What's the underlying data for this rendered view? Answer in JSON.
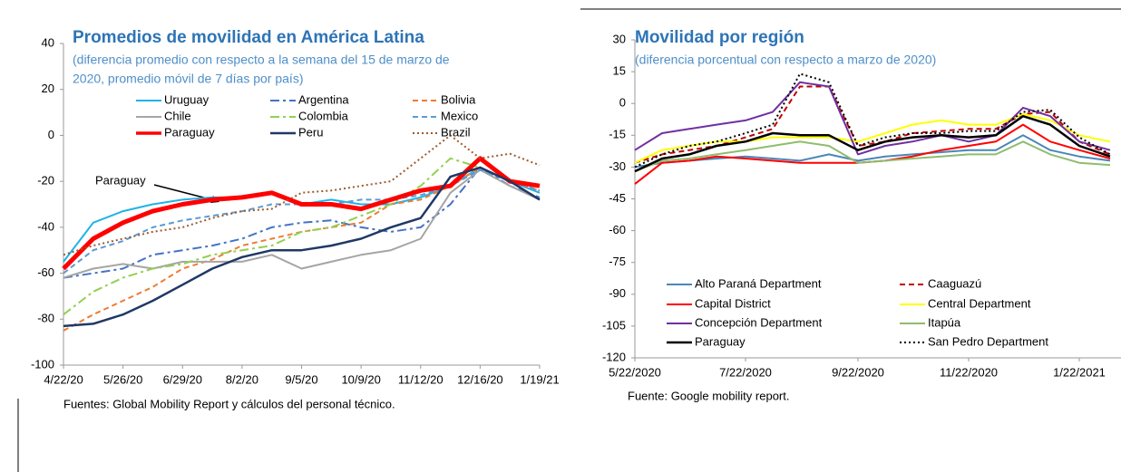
{
  "chart_data": [
    {
      "type": "line",
      "title": "Promedios de movilidad en América Latina",
      "subtitle": [
        "(diferencia promedio con respecto a la semana del 15 de marzo de",
        "2020, promedio móvil de 7 días por país)"
      ],
      "annotation": "Paraguay",
      "source": "Fuentes: Global Mobility Report y cálculos del personal técnico.",
      "x": [
        "4/22/20",
        "5/9/20",
        "5/26/20",
        "6/12/20",
        "6/29/20",
        "7/16/20",
        "8/2/20",
        "8/19/20",
        "9/5/20",
        "9/22/20",
        "10/9/20",
        "10/26/20",
        "11/12/20",
        "11/29/20",
        "12/16/20",
        "1/2/21",
        "1/19/21"
      ],
      "xlim": [
        "4/22/20",
        "1/19/21"
      ],
      "xticks": [
        "4/22/20",
        "5/26/20",
        "6/29/20",
        "8/2/20",
        "9/5/20",
        "10/9/20",
        "11/12/20",
        "12/16/20",
        "1/19/21"
      ],
      "ylim": [
        -100,
        40
      ],
      "yticks": [
        40,
        20,
        0,
        -20,
        -40,
        -60,
        -80,
        -100
      ],
      "grid": false,
      "series": [
        {
          "name": "Uruguay",
          "color": "#1fb3e8",
          "dash": "solid",
          "width": 2,
          "values": [
            -55,
            -38,
            -33,
            -30,
            -28,
            -27,
            -27,
            -25,
            -30,
            -28,
            -30,
            -30,
            -27,
            -22,
            -14,
            -20,
            -25
          ]
        },
        {
          "name": "Argentina",
          "color": "#4472c4",
          "dash": "dashdot",
          "width": 2,
          "values": [
            -62,
            -60,
            -58,
            -52,
            -50,
            -48,
            -45,
            -40,
            -38,
            -37,
            -40,
            -42,
            -40,
            -30,
            -14,
            -22,
            -27
          ]
        },
        {
          "name": "Bolivia",
          "color": "#ed7d31",
          "dash": "dash",
          "width": 2,
          "values": [
            -85,
            -78,
            -72,
            -66,
            -58,
            -54,
            -48,
            -45,
            -42,
            -40,
            -38,
            -30,
            -28,
            -22,
            -14,
            -20,
            -24
          ]
        },
        {
          "name": "Chile",
          "color": "#a5a5a5",
          "dash": "solid",
          "width": 2,
          "values": [
            -62,
            -58,
            -56,
            -58,
            -55,
            -55,
            -55,
            -52,
            -58,
            -55,
            -52,
            -50,
            -45,
            -25,
            -15,
            -22,
            -28
          ]
        },
        {
          "name": "Colombia",
          "color": "#92d050",
          "dash": "dashdot",
          "width": 2,
          "values": [
            -78,
            -68,
            -62,
            -58,
            -56,
            -52,
            -50,
            -48,
            -42,
            -40,
            -35,
            -30,
            -22,
            -10,
            -14,
            -20,
            -28
          ]
        },
        {
          "name": "Mexico",
          "color": "#5b9bd5",
          "dash": "dash",
          "width": 2,
          "values": [
            -60,
            -50,
            -46,
            -40,
            -37,
            -35,
            -33,
            -30,
            -30,
            -30,
            -28,
            -28,
            -26,
            -22,
            -15,
            -20,
            -24
          ]
        },
        {
          "name": "Paraguay",
          "color": "#ff0000",
          "dash": "solid",
          "width": 5,
          "values": [
            -58,
            -45,
            -38,
            -33,
            -30,
            -28,
            -27,
            -25,
            -30,
            -30,
            -32,
            -28,
            -24,
            -22,
            -10,
            -20,
            -22
          ]
        },
        {
          "name": "Peru",
          "color": "#203864",
          "dash": "solid",
          "width": 2.5,
          "values": [
            -83,
            -82,
            -78,
            -72,
            -65,
            -58,
            -53,
            -50,
            -50,
            -48,
            -45,
            -40,
            -36,
            -18,
            -14,
            -20,
            -28
          ]
        },
        {
          "name": "Brazil",
          "color": "#9e5a2b",
          "dash": "dot",
          "width": 2,
          "values": [
            -52,
            -48,
            -45,
            -42,
            -40,
            -36,
            -33,
            -32,
            -25,
            -24,
            -22,
            -20,
            -10,
            0,
            -10,
            -8,
            -13
          ]
        }
      ]
    },
    {
      "type": "line",
      "title": "Movilidad por región",
      "subtitle": [
        "(diferencia porcentual con respecto a marzo de 2020)"
      ],
      "source": "Fuente: Google mobility report.",
      "x": [
        "5/22/2020",
        "6/6/2020",
        "6/21/2020",
        "7/6/2020",
        "7/22/2020",
        "8/6/2020",
        "8/21/2020",
        "9/6/2020",
        "9/22/2020",
        "10/7/2020",
        "10/22/2020",
        "11/7/2020",
        "11/22/2020",
        "12/7/2020",
        "12/22/2020",
        "1/6/2021",
        "1/22/2021",
        "2/8/2021"
      ],
      "xlim": [
        "5/22/2020",
        "2/14/2021"
      ],
      "xticks": [
        "5/22/2020",
        "7/22/2020",
        "9/22/2020",
        "11/22/2020",
        "1/22/2021"
      ],
      "ylim": [
        -120,
        30
      ],
      "yticks": [
        30,
        15,
        0,
        -15,
        -30,
        -45,
        -60,
        -75,
        -90,
        -105,
        -120
      ],
      "grid": false,
      "series": [
        {
          "name": "Alto Paraná Department",
          "color": "#4a86b8",
          "dash": "solid",
          "width": 2,
          "values": [
            -30,
            -28,
            -27,
            -26,
            -25,
            -26,
            -27,
            -24,
            -27,
            -25,
            -24,
            -23,
            -22,
            -22,
            -15,
            -22,
            -25,
            -27
          ]
        },
        {
          "name": "Caaguazú",
          "color": "#c00000",
          "dash": "dash",
          "width": 2,
          "values": [
            -28,
            -24,
            -22,
            -20,
            -16,
            -12,
            8,
            8,
            -20,
            -18,
            -14,
            -13,
            -12,
            -12,
            -5,
            -4,
            -18,
            -24
          ]
        },
        {
          "name": "Capital District",
          "color": "#ff0000",
          "dash": "solid",
          "width": 2,
          "values": [
            -38,
            -28,
            -27,
            -25,
            -26,
            -27,
            -28,
            -28,
            -28,
            -27,
            -25,
            -22,
            -20,
            -18,
            -10,
            -18,
            -22,
            -26
          ]
        },
        {
          "name": "Central Department",
          "color": "#ffff00",
          "dash": "solid",
          "width": 2,
          "values": [
            -28,
            -22,
            -20,
            -18,
            -18,
            -16,
            -16,
            -16,
            -18,
            -14,
            -10,
            -8,
            -10,
            -10,
            -5,
            -8,
            -15,
            -18
          ]
        },
        {
          "name": "Concepción Department",
          "color": "#7030a0",
          "dash": "solid",
          "width": 2,
          "values": [
            -22,
            -14,
            -12,
            -10,
            -8,
            -4,
            10,
            8,
            -24,
            -20,
            -18,
            -15,
            -18,
            -15,
            -2,
            -6,
            -18,
            -22
          ]
        },
        {
          "name": "Itapúa",
          "color": "#8fbc6f",
          "dash": "solid",
          "width": 2,
          "values": [
            -32,
            -27,
            -26,
            -24,
            -22,
            -20,
            -18,
            -20,
            -28,
            -27,
            -26,
            -25,
            -24,
            -24,
            -18,
            -24,
            -28,
            -29
          ]
        },
        {
          "name": "Paraguay",
          "color": "#000000",
          "dash": "solid",
          "width": 2.5,
          "values": [
            -32,
            -26,
            -24,
            -20,
            -18,
            -14,
            -15,
            -15,
            -22,
            -18,
            -16,
            -15,
            -16,
            -15,
            -6,
            -10,
            -20,
            -25
          ]
        },
        {
          "name": "San Pedro Department",
          "color": "#000000",
          "dash": "dot",
          "width": 2,
          "values": [
            -30,
            -24,
            -20,
            -18,
            -14,
            -10,
            14,
            10,
            -20,
            -16,
            -14,
            -14,
            -13,
            -13,
            -4,
            -3,
            -16,
            -24
          ]
        }
      ]
    }
  ]
}
